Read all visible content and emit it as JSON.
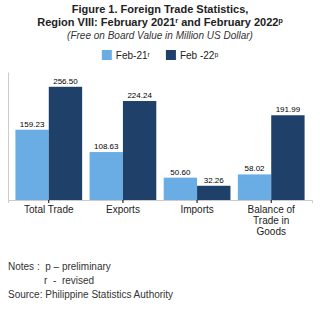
{
  "chart_data": {
    "type": "bar",
    "title": [
      "Figure 1. Foreign Trade Statistics,",
      "Region VIII: February 2021ʳ and February 2022ᵖ"
    ],
    "subtitle": "(Free on Board Value in Million US Dollar)",
    "categories": [
      "Total Trade",
      "Exports",
      "Imports",
      "Balance of\nTrade in\nGoods"
    ],
    "series": [
      {
        "name": "Feb-21ʳ",
        "color": "#6aade4",
        "values": [
          159.23,
          108.63,
          50.6,
          58.02
        ],
        "value_labels": [
          "159.23",
          "108.63",
          "50.60",
          "58.02"
        ]
      },
      {
        "name": "Feb -22ᵖ",
        "color": "#1f4068",
        "values": [
          256.5,
          224.24,
          32.26,
          191.99
        ],
        "value_labels": [
          "256.50",
          "224.24",
          "32.26",
          "191.99"
        ]
      }
    ],
    "ylim": [
      0,
      290
    ],
    "data_labels": true,
    "tick_labels": "x",
    "grid": false,
    "legend": "top",
    "annotations": [
      "Notes :  p – preliminary",
      "             r  -  revised",
      "Source: Philippine Statistics Authority"
    ]
  }
}
